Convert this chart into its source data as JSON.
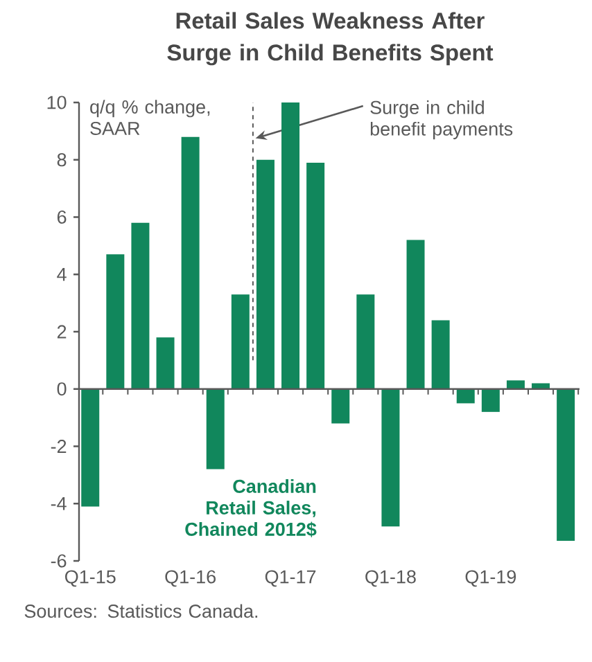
{
  "chart_data": {
    "type": "bar",
    "title": "Retail Sales Weakness After Surge in Child Benefits Spent",
    "ylabel": "q/q % change, SAAR",
    "categories": [
      "Q1-15",
      null,
      null,
      null,
      "Q1-16",
      null,
      null,
      null,
      "Q1-17",
      null,
      null,
      null,
      "Q1-18",
      null,
      null,
      null,
      "Q1-19",
      null,
      null,
      null
    ],
    "series": [
      {
        "name": "Canadian Retail Sales, Chained 2012$",
        "color": "#11875c",
        "values": [
          -4.1,
          4.7,
          5.8,
          1.8,
          8.8,
          -2.8,
          3.3,
          8.0,
          10.0,
          7.9,
          -1.2,
          3.3,
          -4.8,
          5.2,
          2.4,
          -0.5,
          -0.8,
          0.3,
          0.2,
          -5.3
        ]
      }
    ],
    "ylim": [
      -6,
      10
    ],
    "yticks": [
      -6,
      -4,
      -2,
      0,
      2,
      4,
      6,
      8,
      10
    ],
    "annotations": [
      "Surge in child benefit payments",
      "Sources: Statistics Canada."
    ]
  }
}
